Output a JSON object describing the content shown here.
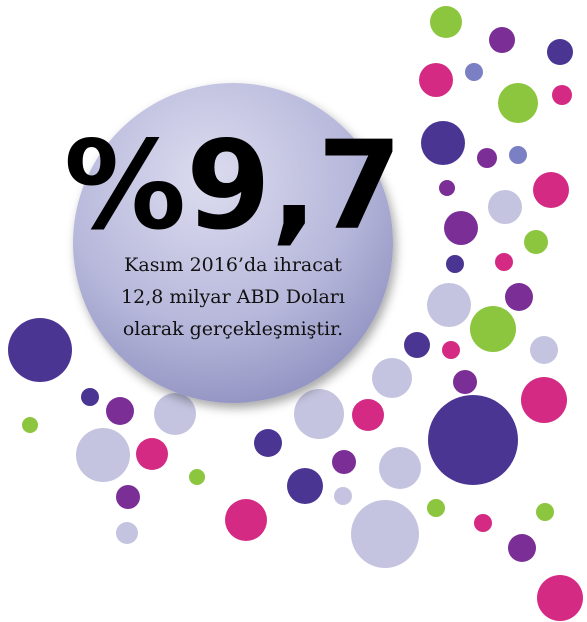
{
  "headline": "%9,7",
  "body": [
    "Kasım 2016’da ihracat",
    "12,8 milyar ABD Doları",
    "olarak gerçekleşmiştir."
  ]
}
